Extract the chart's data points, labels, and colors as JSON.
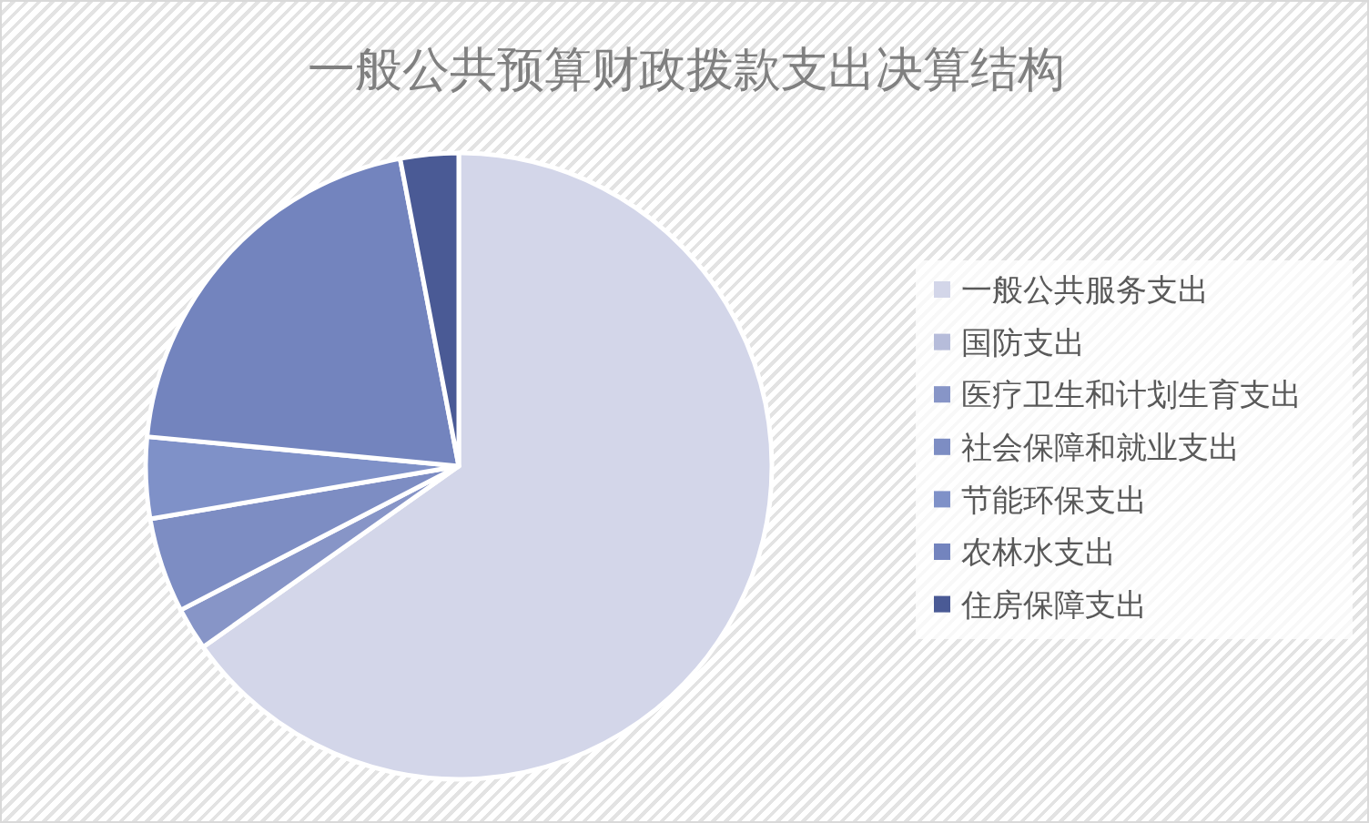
{
  "chart_data": {
    "type": "pie",
    "title": "一般公共预算财政拨款支出决算结构",
    "categories": [
      "一般公共服务支出",
      "国防支出",
      "医疗卫生和计划生育支出",
      "社会保障和就业支出",
      "节能环保支出",
      "农林水支出",
      "住房保障支出"
    ],
    "values": [
      65.2,
      null,
      2.2,
      4.9,
      4.2,
      20.5,
      3.0
    ],
    "colors": [
      "#d3d6e9",
      "#b6bcda",
      "#8795c7",
      "#7d8dc3",
      "#7f91c8",
      "#7384be",
      "#4a5a95"
    ],
    "legend": "right"
  }
}
